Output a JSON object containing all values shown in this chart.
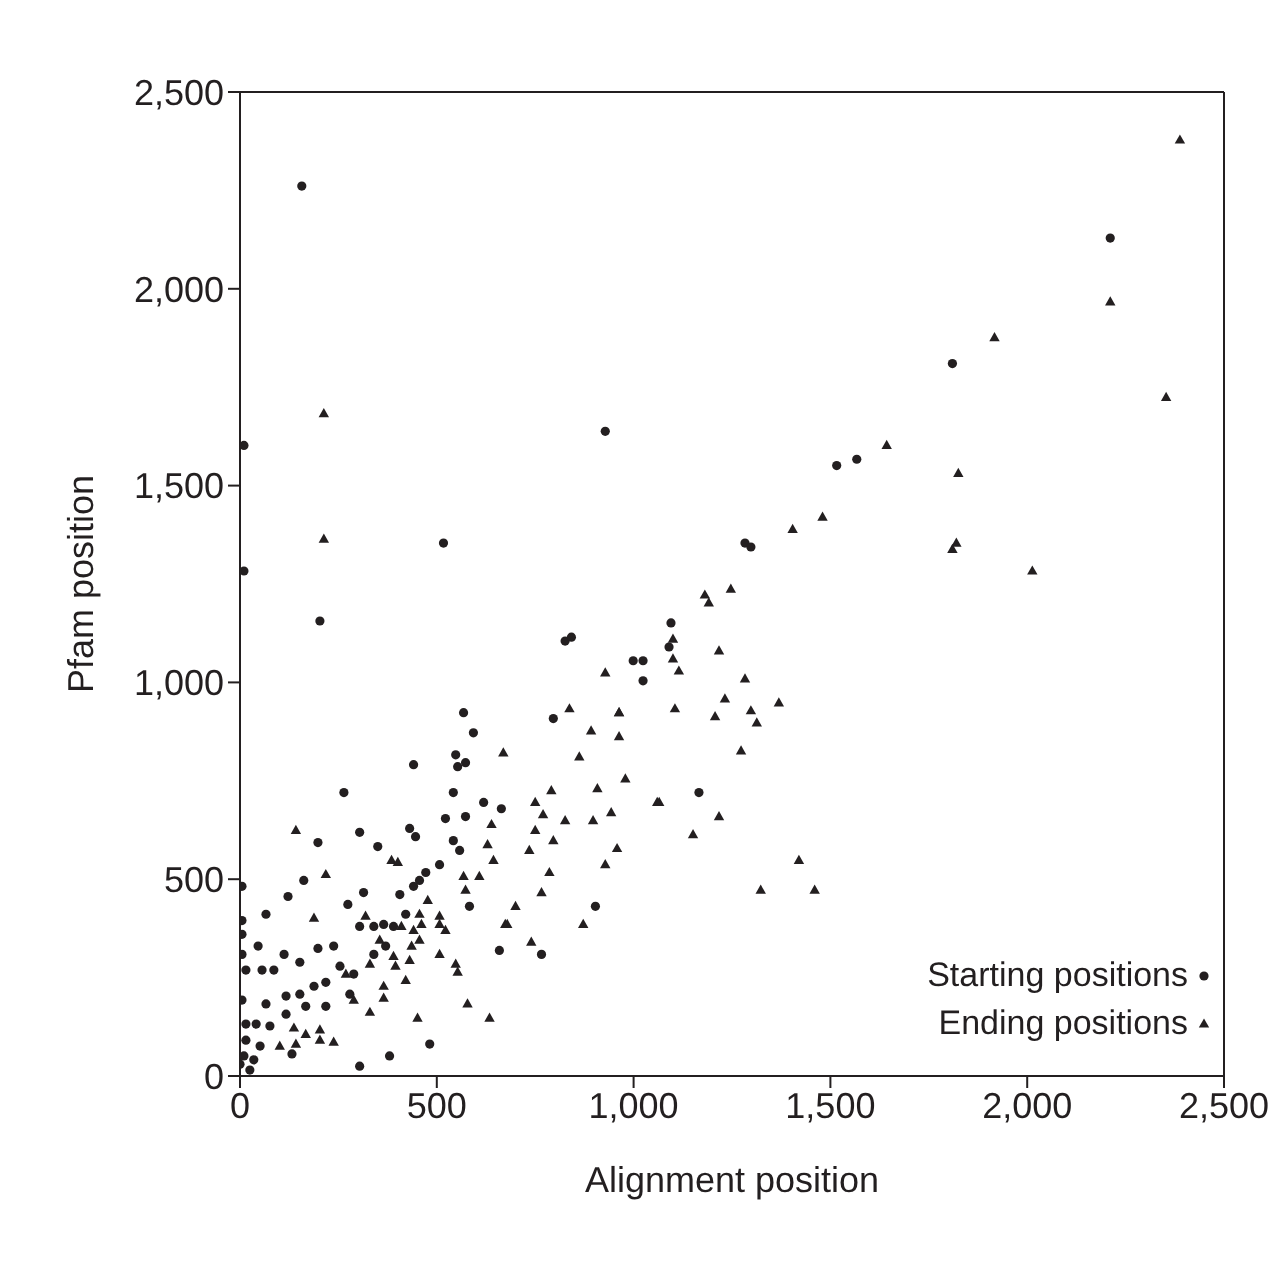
{
  "chart_data": {
    "type": "scatter",
    "xlabel": "Alignment position",
    "ylabel": "Pfam position",
    "xlim": [
      0,
      2500
    ],
    "ylim": [
      0,
      2500
    ],
    "xticks": [
      {
        "value": 0,
        "label": "0"
      },
      {
        "value": 500,
        "label": "500"
      },
      {
        "value": 1000,
        "label": "1,000"
      },
      {
        "value": 1500,
        "label": "1,500"
      },
      {
        "value": 2000,
        "label": "2,000"
      },
      {
        "value": 2500,
        "label": "2,500"
      }
    ],
    "yticks": [
      {
        "value": 0,
        "label": "0"
      },
      {
        "value": 500,
        "label": "500"
      },
      {
        "value": 1000,
        "label": "1,000"
      },
      {
        "value": 1500,
        "label": "1,500"
      },
      {
        "value": 2000,
        "label": "2,000"
      },
      {
        "value": 2500,
        "label": "2,500"
      }
    ],
    "grid": false,
    "legend": "bottom right",
    "series": [
      {
        "name": "Starting positions",
        "color": "#231f20",
        "marker": "circle",
        "x": [
          1810,
          1516,
          1567,
          928,
          1283,
          1298,
          1095,
          999,
          1024,
          1024,
          1090,
          1166,
          2211,
          157,
          10,
          10,
          517,
          203,
          826,
          842,
          568,
          593,
          441,
          548,
          553,
          573,
          542,
          264,
          796,
          619,
          664,
          522,
          573,
          431,
          304,
          198,
          350,
          446,
          542,
          558,
          162,
          5,
          122,
          314,
          274,
          66,
          583,
          5,
          5,
          46,
          112,
          5,
          56,
          15,
          86,
          198,
          659,
          766,
          903,
          152,
          152,
          5,
          66,
          117,
          15,
          41,
          76,
          15,
          51,
          132,
          10,
          35,
          304,
          380,
          482,
          0,
          25,
          218,
          289,
          340,
          390,
          421,
          456,
          472,
          507,
          218,
          167,
          117,
          304,
          238,
          365,
          406,
          441,
          340,
          254,
          188,
          370,
          279
        ],
        "values": [
          1810,
          1551,
          1567,
          1638,
          1354,
          1344,
          1151,
          1055,
          1055,
          1004,
          1090,
          720,
          2129,
          2261,
          1602,
          1283,
          1354,
          1156,
          1105,
          1115,
          923,
          872,
          791,
          816,
          786,
          796,
          720,
          720,
          908,
          695,
          679,
          654,
          659,
          629,
          619,
          593,
          583,
          608,
          598,
          573,
          497,
          482,
          456,
          466,
          436,
          411,
          431,
          395,
          360,
          330,
          309,
          309,
          269,
          269,
          269,
          324,
          319,
          309,
          431,
          289,
          208,
          193,
          183,
          203,
          132,
          132,
          127,
          91,
          76,
          56,
          51,
          41,
          25,
          51,
          81,
          30,
          15,
          238,
          259,
          309,
          380,
          411,
          497,
          517,
          537,
          177,
          177,
          157,
          380,
          330,
          385,
          461,
          482,
          380,
          279,
          228,
          330,
          208
        ]
      },
      {
        "name": "Ending positions",
        "color": "#231f20",
        "marker": "triangle",
        "x": [
          2388,
          2211,
          1917,
          2353,
          1643,
          1825,
          1480,
          1404,
          1820,
          1810,
          2013,
          1247,
          1181,
          1191,
          1100,
          1217,
          1100,
          1115,
          928,
          1283,
          1232,
          963,
          1105,
          1207,
          1298,
          1313,
          1369,
          1273,
          979,
          1065,
          943,
          1217,
          1151,
          958,
          928,
          1420,
          1323,
          1460,
          213,
          213,
          142,
          218,
          385,
          401,
          188,
          319,
          669,
          837,
          892,
          862,
          963,
          963,
          908,
          1060,
          791,
          750,
          770,
          826,
          897,
          750,
          796,
          735,
          639,
          629,
          644,
          608,
          568,
          786,
          766,
          573,
          700,
          674,
          679,
          872,
          740,
          507,
          507,
          461,
          441,
          410,
          436,
          431,
          395,
          548,
          553,
          507,
          421,
          578,
          634,
          451,
          365,
          330,
          365,
          289,
          203,
          238,
          203,
          167,
          142,
          101,
          137,
          456,
          477,
          355,
          390,
          330,
          269,
          522,
          456
        ],
        "values": [
          2378,
          1967,
          1876,
          1724,
          1602,
          1531,
          1420,
          1389,
          1354,
          1338,
          1283,
          1237,
          1222,
          1202,
          1110,
          1080,
          1060,
          1029,
          1024,
          1009,
          958,
          923,
          933,
          913,
          928,
          897,
          948,
          826,
          755,
          695,
          669,
          659,
          613,
          578,
          537,
          548,
          472,
          472,
          1683,
          1364,
          624,
          512,
          548,
          543,
          401,
          406,
          821,
          933,
          877,
          811,
          923,
          862,
          730,
          695,
          725,
          695,
          664,
          649,
          649,
          624,
          598,
          573,
          639,
          588,
          548,
          507,
          507,
          517,
          466,
          472,
          431,
          385,
          385,
          385,
          340,
          406,
          385,
          385,
          370,
          380,
          330,
          294,
          279,
          284,
          264,
          309,
          243,
          183,
          147,
          147,
          198,
          162,
          228,
          193,
          117,
          86,
          91,
          106,
          81,
          76,
          122,
          411,
          446,
          345,
          304,
          284,
          259,
          370,
          345
        ]
      }
    ]
  }
}
